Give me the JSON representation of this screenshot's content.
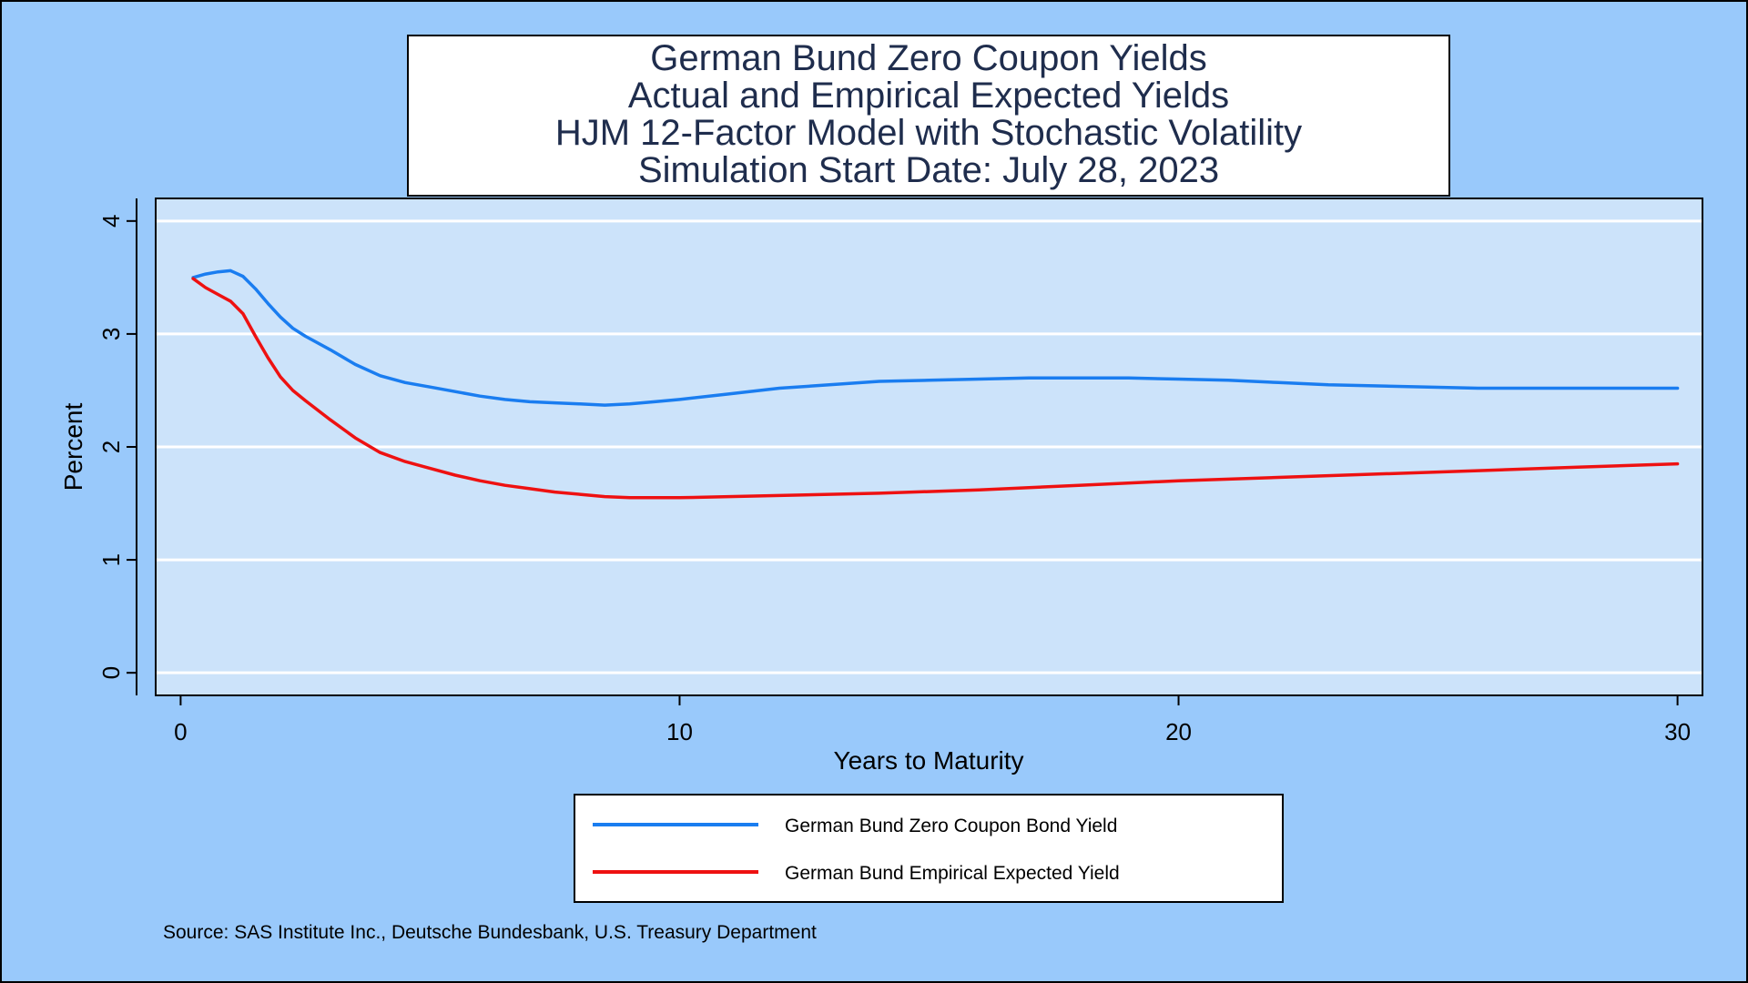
{
  "chart_data": {
    "type": "line",
    "title_lines": [
      "German Bund Zero Coupon Yields",
      "Actual and Empirical Expected Yields",
      "HJM 12-Factor Model with Stochastic Volatility",
      "Simulation Start Date: July 28, 2023"
    ],
    "xlabel": "Years to Maturity",
    "ylabel": "Percent",
    "xlim": [
      -0.5,
      30.5
    ],
    "ylim": [
      -0.2,
      4.2
    ],
    "x_ticks": [
      0,
      10,
      20,
      30
    ],
    "y_ticks": [
      0,
      1,
      2,
      3,
      4
    ],
    "grid": "horizontal",
    "legend_position": "bottom",
    "source": "Source: SAS Institute Inc., Deutsche Bundesbank, U.S. Treasury Department",
    "series": [
      {
        "name": "German Bund Zero Coupon Bond Yield",
        "color": "#1a7df0",
        "x": [
          0.25,
          0.5,
          0.75,
          1.0,
          1.25,
          1.5,
          1.75,
          2.0,
          2.25,
          2.5,
          3.0,
          3.5,
          4.0,
          4.5,
          5.0,
          5.5,
          6.0,
          6.5,
          7.0,
          7.5,
          8.0,
          8.5,
          9.0,
          9.5,
          10.0,
          11.0,
          12.0,
          13.0,
          14.0,
          15.0,
          16.0,
          17.0,
          18.0,
          19.0,
          20.0,
          21.0,
          22.0,
          23.0,
          24.0,
          25.0,
          26.0,
          27.0,
          28.0,
          29.0,
          30.0
        ],
        "y": [
          3.5,
          3.53,
          3.55,
          3.56,
          3.51,
          3.4,
          3.27,
          3.15,
          3.05,
          2.98,
          2.86,
          2.73,
          2.63,
          2.57,
          2.53,
          2.49,
          2.45,
          2.42,
          2.4,
          2.39,
          2.38,
          2.37,
          2.38,
          2.4,
          2.42,
          2.47,
          2.52,
          2.55,
          2.58,
          2.59,
          2.6,
          2.61,
          2.61,
          2.61,
          2.6,
          2.59,
          2.57,
          2.55,
          2.54,
          2.53,
          2.52,
          2.52,
          2.52,
          2.52,
          2.52
        ]
      },
      {
        "name": "German Bund Empirical Expected Yield",
        "color": "#ee1111",
        "x": [
          0.25,
          0.5,
          0.75,
          1.0,
          1.25,
          1.5,
          1.75,
          2.0,
          2.25,
          2.5,
          3.0,
          3.5,
          4.0,
          4.5,
          5.0,
          5.5,
          6.0,
          6.5,
          7.0,
          7.5,
          8.0,
          8.5,
          9.0,
          9.5,
          10.0,
          12.0,
          14.0,
          16.0,
          18.0,
          20.0,
          22.0,
          24.0,
          26.0,
          28.0,
          30.0
        ],
        "y": [
          3.49,
          3.41,
          3.35,
          3.29,
          3.18,
          2.98,
          2.79,
          2.62,
          2.5,
          2.41,
          2.24,
          2.08,
          1.95,
          1.87,
          1.81,
          1.75,
          1.7,
          1.66,
          1.63,
          1.6,
          1.58,
          1.56,
          1.55,
          1.55,
          1.55,
          1.57,
          1.59,
          1.62,
          1.66,
          1.7,
          1.73,
          1.76,
          1.79,
          1.82,
          1.85
        ]
      }
    ]
  }
}
